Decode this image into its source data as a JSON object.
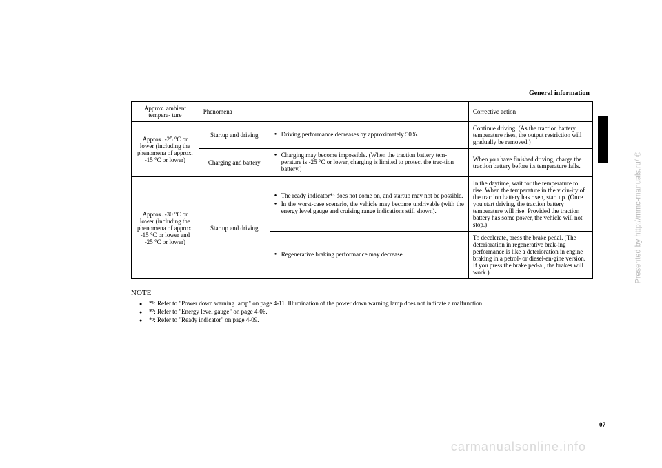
{
  "header": {
    "section_title": "General information"
  },
  "table": {
    "headers": {
      "temp": "Approx.\nambient tempera-\nture",
      "phen": "Phenomena",
      "action": "Corrective action"
    },
    "rows": {
      "r1_temp": "Approx. -25 °C or lower (including the phenomena of approx. -15 °C or lower)",
      "r1a_phase": "Startup and driving",
      "r1a_phen": "Driving performance decreases by approximately 50%.",
      "r1a_action": "Continue driving. (As the traction battery temperature rises, the output restriction will gradually be removed.)",
      "r1b_phase": "Charging and battery",
      "r1b_phen": "Charging may become impossible. (When the traction battery tem-perature is -25 °C or lower, charging is limited to protect the trac-tion battery.)",
      "r1b_action": "When you have finished driving, charge the traction battery before its temperature falls.",
      "r2_temp": "Approx. -30 °C or lower (including the phenomena of approx. -15 °C or lower and -25 °C or lower)",
      "r2_phase": "Startup and driving",
      "r2a_phen1": "The ready indicator*³ does not come on, and startup may not be possible.",
      "r2a_phen2": "In the worst-case scenario, the vehicle may become undrivable (with the energy level gauge and cruising range indications still shown).",
      "r2a_action": "In the daytime, wait for the temperature to rise. When the temperature in the vicin-ity of the traction battery has risen, start up. (Once you start driving, the traction battery temperature will rise. Provided the traction battery has some power, the vehicle will not stop.)",
      "r2b_phen": "Regenerative braking performance may decrease.",
      "r2b_action": "To decelerate, press the brake pedal. (The deterioration in regenerative brak-ing performance is like a deterioration in engine braking in a petrol- or diesel-en-gine version. If you press the brake ped-al, the brakes will work.)"
    }
  },
  "notes": {
    "title": "NOTE",
    "n1": "*¹: Refer to \"Power down warning lamp\" on page 4-11. Illumination of the power down warning lamp does not indicate a malfunction.",
    "n2": "*²: Refer to \"Energy level gauge\" on page 4-06.",
    "n3": "*³: Refer to \"Ready indicator\" on page 4-09."
  },
  "page_number": "07",
  "watermarks": {
    "side": "Presented by http://mmc-manuals.ru/ ©",
    "bottom": "carmanualsonline.info"
  }
}
